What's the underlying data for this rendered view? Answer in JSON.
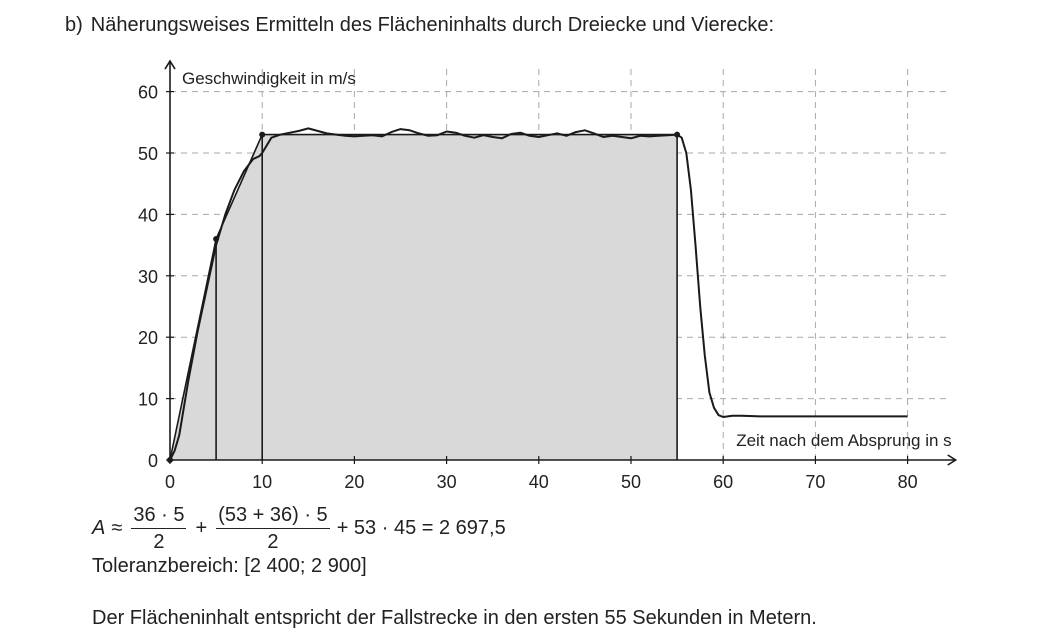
{
  "heading": {
    "label": "b)",
    "text": "Näherungsweises Ermitteln des Flächeninhalts durch Dreiecke und Vierecke:"
  },
  "chart_data": {
    "type": "line",
    "ylabel": "Geschwindigkeit in m/s",
    "xlabel": "Zeit nach dem Absprung in s",
    "x_ticks": [
      0,
      10,
      20,
      30,
      40,
      50,
      60,
      70,
      80
    ],
    "y_ticks": [
      0,
      10,
      20,
      30,
      40,
      50,
      60
    ],
    "xlim": [
      0,
      85
    ],
    "ylim": [
      0,
      64
    ],
    "grid": true,
    "curve": {
      "x": [
        0,
        0.5,
        1,
        2,
        3,
        4,
        5,
        6,
        7,
        8,
        9,
        9.7,
        10,
        11,
        12,
        13,
        14,
        15,
        16,
        17,
        18,
        19,
        20,
        21,
        22,
        23,
        24,
        25,
        26,
        27,
        28,
        29,
        30,
        31,
        32,
        33,
        34,
        35,
        36,
        37,
        38,
        39,
        40,
        41,
        42,
        43,
        44,
        45,
        46,
        47,
        48,
        49,
        50,
        51,
        52,
        53,
        54,
        55,
        55.5,
        56,
        56.5,
        57,
        57.5,
        58,
        58.5,
        59,
        59.5,
        60,
        61,
        62,
        64,
        66,
        70,
        75,
        80
      ],
      "y": [
        0,
        1.5,
        4,
        13,
        21,
        28,
        35,
        40,
        44,
        47,
        49,
        49.5,
        50,
        52.5,
        53,
        53.3,
        53.6,
        54,
        53.6,
        53.2,
        53,
        52.8,
        52.7,
        52.8,
        52.9,
        52.7,
        53.4,
        53.9,
        53.7,
        53.2,
        52.8,
        52.9,
        53.5,
        53.3,
        52.8,
        52.5,
        52.9,
        52.6,
        52.4,
        53.1,
        53.3,
        52.8,
        52.6,
        52.9,
        53.2,
        52.8,
        53.4,
        53.7,
        53.2,
        52.6,
        52.8,
        52.6,
        52.4,
        52.8,
        52.7,
        52.8,
        52.9,
        53,
        52.5,
        50,
        44,
        35,
        25,
        17,
        11,
        8.5,
        7.3,
        7,
        7.2,
        7.2,
        7.1,
        7.1,
        7.1,
        7.1,
        7.1
      ]
    },
    "approximation": {
      "points": [
        [
          0,
          0
        ],
        [
          5,
          36
        ],
        [
          10,
          53
        ],
        [
          55,
          53
        ]
      ],
      "area_polygon": [
        [
          0,
          0
        ],
        [
          5,
          36
        ],
        [
          10,
          53
        ],
        [
          55,
          53
        ],
        [
          55,
          0
        ]
      ],
      "verticals": [
        5,
        10,
        55
      ]
    },
    "colors": {
      "fill": "#d9d9d9",
      "line": "#1a1a1a",
      "grid": "#a9a9a9"
    }
  },
  "formula": {
    "variable": "A",
    "approx": "≈",
    "frac1_num": "36 · 5",
    "frac1_den": "2",
    "plus1": "+",
    "frac2_num": "(53 + 36) · 5",
    "frac2_den": "2",
    "tail": "+ 53 · 45 = 2 697,5"
  },
  "tolerance": "Toleranzbereich: [2 400; 2 900]",
  "conclusion": "Der Flächeninhalt entspricht der Fallstrecke in den ersten 55 Sekunden in Metern."
}
